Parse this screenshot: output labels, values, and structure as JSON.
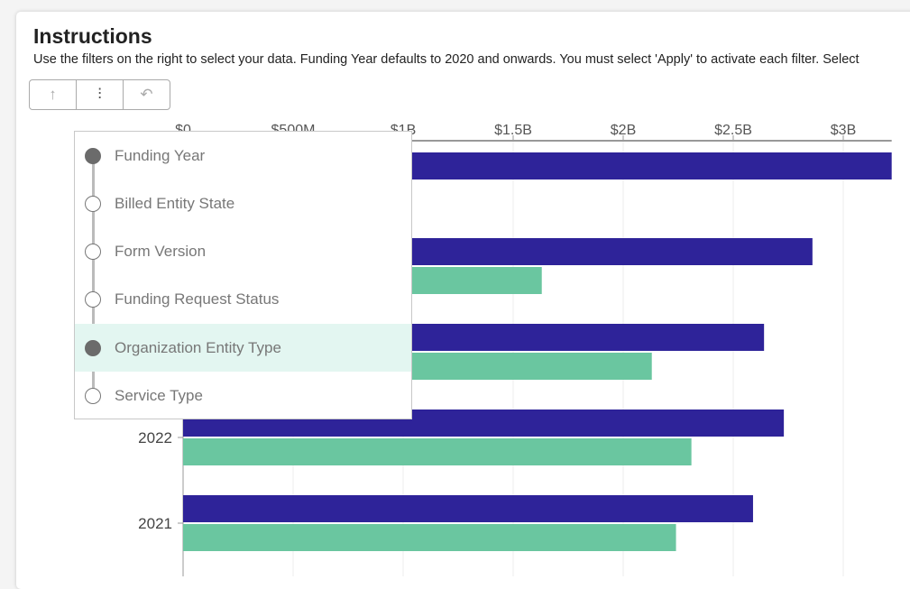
{
  "header": {
    "title": "Instructions",
    "description": "Use the filters on the right to select your data. Funding Year defaults to 2020 and onwards. You must select 'Apply' to activate each filter. Select"
  },
  "toolbar": {
    "buttons": [
      {
        "icon": "arrow-up-icon",
        "glyph": "↑"
      },
      {
        "icon": "hierarchy-icon",
        "glyph": "⫶"
      },
      {
        "icon": "undo-icon",
        "glyph": "↶"
      }
    ]
  },
  "filter_menu": {
    "items": [
      {
        "label": "Funding Year",
        "selected": true,
        "highlighted": false
      },
      {
        "label": "Billed Entity State",
        "selected": false,
        "highlighted": false
      },
      {
        "label": "Form Version",
        "selected": false,
        "highlighted": false
      },
      {
        "label": "Funding Request Status",
        "selected": false,
        "highlighted": false
      },
      {
        "label": "Organization Entity Type",
        "selected": true,
        "highlighted": true
      },
      {
        "label": "Service Type",
        "selected": false,
        "highlighted": false
      }
    ]
  },
  "chart_data": {
    "type": "bar",
    "orientation": "horizontal",
    "xaxis": {
      "ticks": [
        "$0",
        "$500M",
        "$1B",
        "$1.5B",
        "$2B",
        "$2.5B",
        "$3B"
      ],
      "tick_values": [
        0,
        500000000,
        1000000000,
        1500000000,
        2000000000,
        2500000000,
        3000000000
      ],
      "range": [
        0,
        3220000000
      ],
      "position": "top"
    },
    "categories": [
      "",
      "",
      "",
      "2022",
      "2021"
    ],
    "series": [
      {
        "color": "#2e2399",
        "values": [
          3220000000,
          2860000000,
          2640000000,
          2730000000,
          2590000000
        ]
      },
      {
        "color": "#6ac6a0",
        "values": [
          0,
          1630000000,
          2130000000,
          2310000000,
          2240000000
        ]
      }
    ],
    "grid": true
  }
}
